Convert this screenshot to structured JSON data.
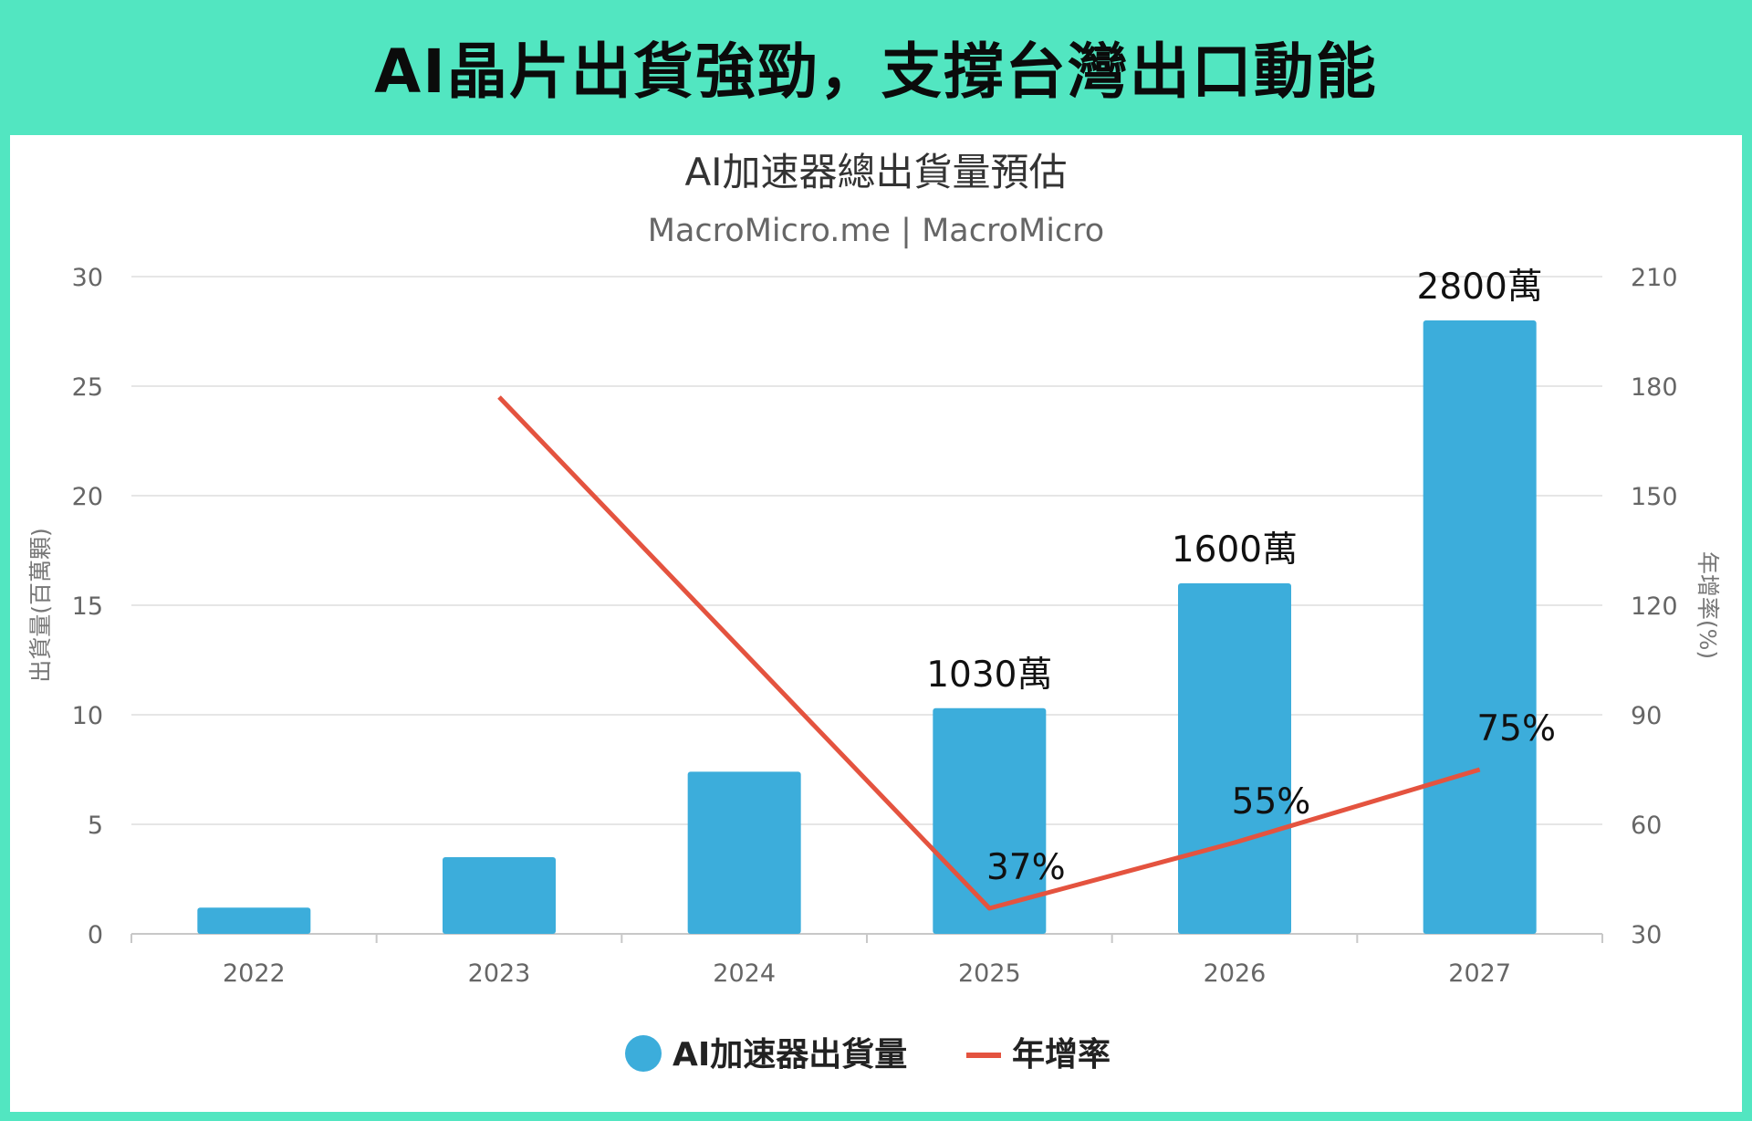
{
  "banner": {
    "title": "AI晶片出貨強勁，支撐台灣出口動能"
  },
  "colors": {
    "frame": "#52e6c1",
    "bar": "#3caddb",
    "line": "#e4533f",
    "grid": "#e6e6e6"
  },
  "chart_data": {
    "type": "bar",
    "title": "AI加速器總出貨量預估",
    "subtitle": "MacroMicro.me | MacroMicro",
    "categories": [
      "2022",
      "2023",
      "2024",
      "2025",
      "2026",
      "2027"
    ],
    "ylabel": "出貨量(百萬顆)",
    "y2label": "年增率(%)",
    "ylim": [
      0,
      30
    ],
    "y2lim": [
      30,
      210
    ],
    "yticks": [
      "0",
      "5",
      "10",
      "15",
      "20",
      "25",
      "30"
    ],
    "y2ticks": [
      "30",
      "60",
      "90",
      "120",
      "150",
      "180",
      "210"
    ],
    "series": [
      {
        "name": "AI加速器出貨量",
        "type": "bar",
        "axis": "left",
        "values": [
          1.2,
          3.5,
          7.4,
          10.3,
          16.0,
          28.0
        ],
        "labels": [
          "",
          "",
          "",
          "1030萬",
          "1600萬",
          "2800萬"
        ]
      },
      {
        "name": "年增率",
        "type": "line",
        "axis": "right",
        "values": [
          null,
          177,
          107,
          37,
          55,
          75
        ],
        "labels": [
          "",
          "",
          "",
          "37%",
          "55%",
          "75%"
        ]
      }
    ],
    "grid": true,
    "legend_position": "bottom-center"
  }
}
